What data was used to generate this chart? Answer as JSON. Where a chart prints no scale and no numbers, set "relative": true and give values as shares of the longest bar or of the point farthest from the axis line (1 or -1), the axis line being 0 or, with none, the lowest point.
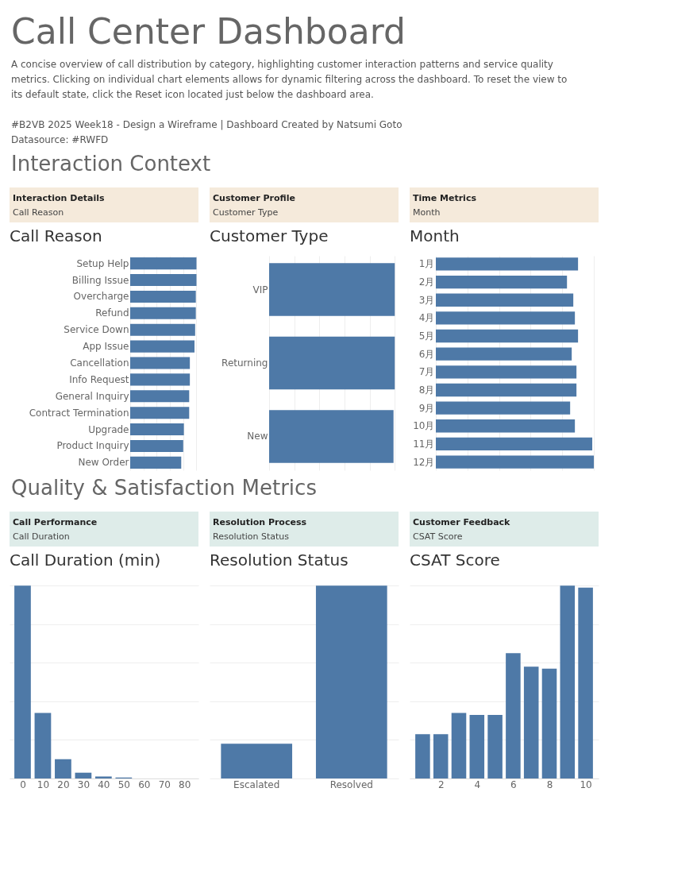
{
  "chart_data": [
    {
      "type": "other",
      "title": "Call Center Dashboard",
      "subtitle": "A concise overview of call distribution by category, highlighting customer interaction patterns and service quality metrics. Clicking on individual chart elements allows for dynamic filtering across the dashboard. To reset the view to its default state, click the Reset icon located just below the dashboard area.",
      "annotations": [
        "#B2VB 2025 Week18 -  Design a Wireframe | Dashboard Created by Natsumi Goto",
        "Datasource: #RWFD"
      ]
    },
    {
      "type": "other",
      "title": "Interaction Context"
    },
    {
      "type": "bar",
      "orientation": "horizontal",
      "relative": true,
      "title": "Call Reason",
      "annotations": [
        "Interaction Details",
        "Call Reason"
      ],
      "grid": "x",
      "color": "#4e79a7",
      "categories": [
        "Setup Help",
        "Billing Issue",
        "Overcharge",
        "Refund",
        "Service Down",
        "App Issue",
        "Cancellation",
        "Info Request",
        "General Inquiry",
        "Contract Termination",
        "Upgrade",
        "Product Inquiry",
        "New Order"
      ],
      "values": [
        1,
        1,
        0.99,
        0.99,
        0.98,
        0.97,
        0.9,
        0.9,
        0.89,
        0.89,
        0.81,
        0.8,
        0.77
      ]
    },
    {
      "type": "bar",
      "orientation": "horizontal",
      "relative": true,
      "title": "Customer Type",
      "annotations": [
        "Customer Profile",
        "Customer Type"
      ],
      "grid": "x",
      "color": "#4e79a7",
      "categories": [
        "VIP",
        "Returning",
        "New"
      ],
      "values": [
        1,
        1,
        0.99
      ]
    },
    {
      "type": "bar",
      "orientation": "horizontal",
      "relative": true,
      "title": "Month",
      "annotations": [
        "Time Metrics",
        "Month"
      ],
      "grid": "x",
      "color": "#4e79a7",
      "categories": [
        "1月",
        "2月",
        "3月",
        "4月",
        "5月",
        "6月",
        "7月",
        "8月",
        "9月",
        "10月",
        "11月",
        "12月"
      ],
      "values": [
        0.9,
        0.83,
        0.87,
        0.88,
        0.9,
        0.86,
        0.89,
        0.89,
        0.85,
        0.88,
        0.99,
        1
      ]
    },
    {
      "type": "other",
      "title": "Quality & Satisfaction Metrics"
    },
    {
      "type": "bar",
      "relative": true,
      "title": "Call Duration (min)",
      "annotations": [
        "Call Performance",
        "Call Duration"
      ],
      "grid": "y",
      "color": "#4e79a7",
      "x": [
        0,
        10,
        20,
        30,
        40,
        50
      ],
      "values": [
        1,
        0.34,
        0.1,
        0.03,
        0.01,
        0.005
      ],
      "xlim": [
        -4.5,
        85
      ],
      "xticks": [
        0,
        10,
        20,
        30,
        40,
        50,
        60,
        70,
        80
      ]
    },
    {
      "type": "bar",
      "relative": true,
      "title": "Resolution Status",
      "annotations": [
        "Resolution Process",
        "Resolution Status"
      ],
      "grid": "y",
      "color": "#4e79a7",
      "categories": [
        "Escalated",
        "Resolved"
      ],
      "values": [
        0.18,
        1
      ]
    },
    {
      "type": "bar",
      "relative": true,
      "title": "CSAT Score",
      "annotations": [
        "Customer Feedback",
        "CSAT Score"
      ],
      "grid": "y",
      "color": "#4e79a7",
      "x": [
        1,
        2,
        3,
        4,
        5,
        6,
        7,
        8,
        9,
        10
      ],
      "values": [
        0.23,
        0.23,
        0.34,
        0.33,
        0.33,
        0.65,
        0.58,
        0.57,
        1,
        0.99
      ],
      "xlim": [
        0.5,
        10.5
      ],
      "xticks": [
        2,
        4,
        6,
        8,
        10
      ]
    }
  ]
}
